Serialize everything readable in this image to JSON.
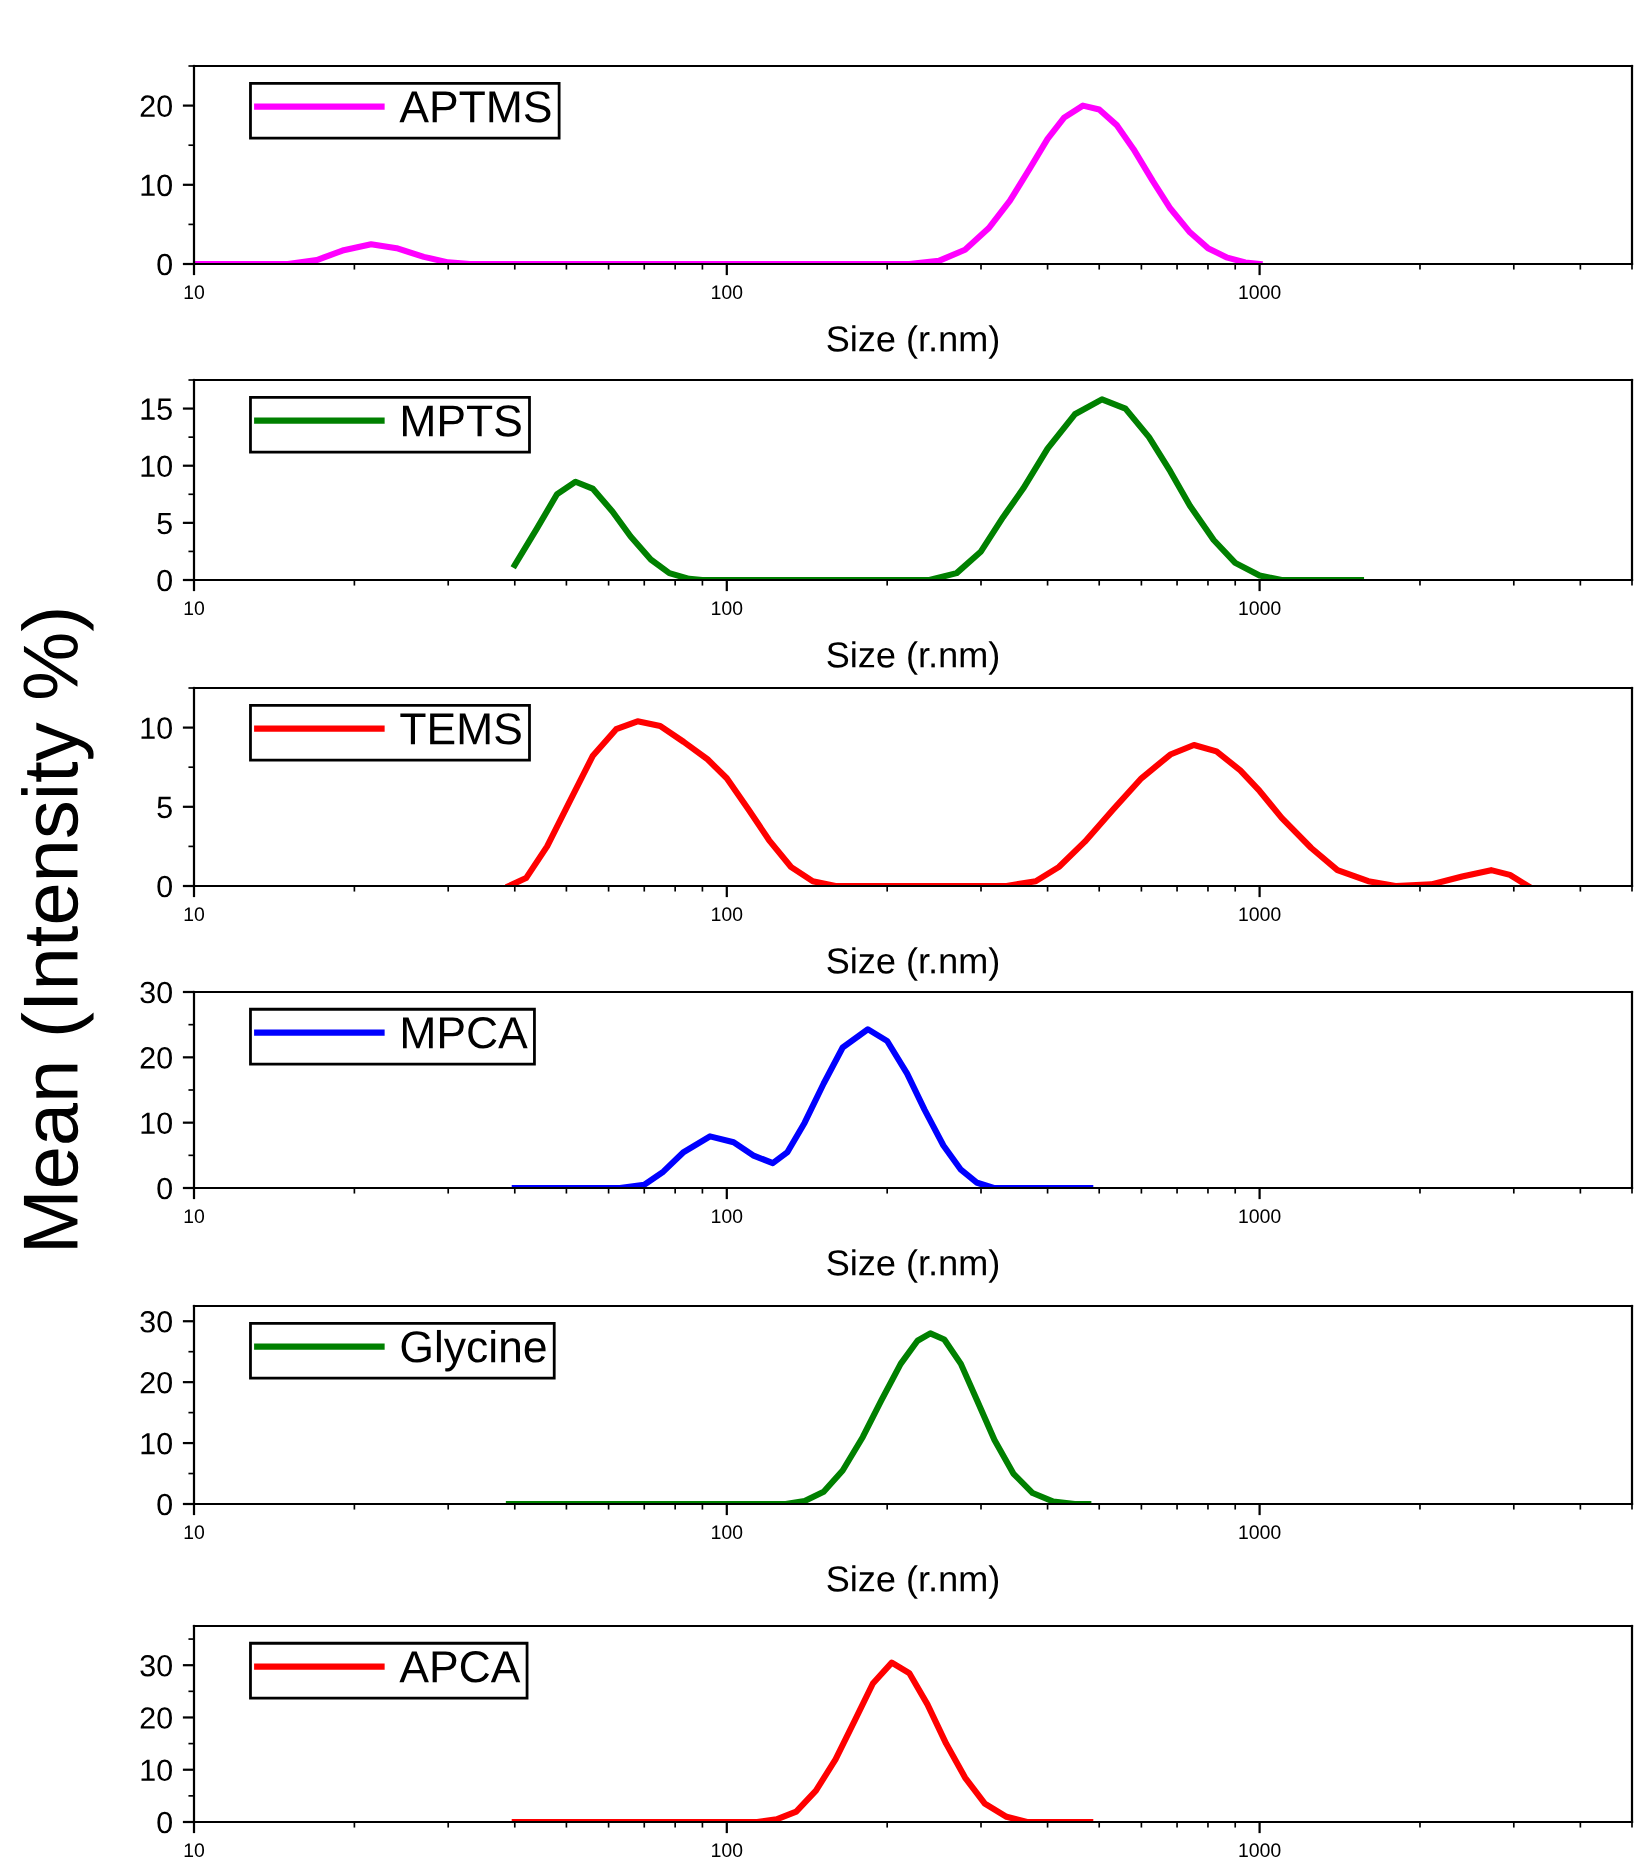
{
  "chart_data": [
    {
      "type": "line",
      "ylabel": "Mean (Intensity %)",
      "xlabel": "Size (r.nm)",
      "log": "x",
      "legend": "top left",
      "xlim": [
        10,
        5000
      ],
      "xticks": [
        10,
        100,
        1000
      ],
      "ylim": [
        0,
        25
      ],
      "yticks": [
        0,
        10,
        20
      ],
      "series": [
        {
          "name": "APTMS",
          "color": "#ff00ff",
          "x": [
            10,
            15,
            17,
            19,
            21.5,
            24,
            27,
            30,
            33,
            100,
            220,
            250,
            280,
            310,
            340,
            370,
            400,
            430,
            466,
            500,
            540,
            580,
            630,
            680,
            740,
            800,
            870,
            940,
            1000
          ],
          "values": [
            0,
            0,
            0.5,
            1.7,
            2.5,
            2.0,
            0.9,
            0.2,
            0,
            0,
            0,
            0.4,
            1.8,
            4.5,
            8,
            12,
            15.8,
            18.5,
            20,
            19.5,
            17.5,
            14.5,
            10.5,
            7,
            4,
            2,
            0.8,
            0.2,
            0
          ]
        }
      ]
    },
    {
      "type": "line",
      "xlabel": "Size (r.nm)",
      "log": "x",
      "legend": "top left",
      "xlim": [
        10,
        5000
      ],
      "xticks": [
        10,
        100,
        1000
      ],
      "ylim": [
        0,
        17.5
      ],
      "yticks": [
        0,
        5,
        10,
        15
      ],
      "series": [
        {
          "name": "MPTS",
          "color": "#008000",
          "x": [
            40,
            44,
            48,
            52,
            56,
            61,
            66,
            72,
            78,
            85,
            90,
            240,
            270,
            300,
            330,
            360,
            400,
            450,
            506,
            560,
            620,
            680,
            740,
            820,
            900,
            1000,
            1100,
            1550
          ],
          "values": [
            1.3,
            4.5,
            7.5,
            8.6,
            8.0,
            6,
            3.8,
            1.8,
            0.6,
            0.1,
            0,
            0,
            0.6,
            2.5,
            5.5,
            8,
            11.5,
            14.5,
            15.8,
            15,
            12.5,
            9.5,
            6.5,
            3.5,
            1.5,
            0.4,
            0,
            0
          ]
        }
      ]
    },
    {
      "type": "line",
      "xlabel": "Size (r.nm)",
      "log": "x",
      "legend": "top left",
      "xlim": [
        10,
        5000
      ],
      "xticks": [
        10,
        100,
        1000
      ],
      "ylim": [
        0,
        12.5
      ],
      "yticks": [
        0,
        5,
        10
      ],
      "series": [
        {
          "name": "TEMS",
          "color": "#ff0000",
          "x": [
            39,
            42,
            46,
            51,
            56,
            62,
            68,
            75,
            83,
            92,
            100,
            110,
            120,
            132,
            145,
            160,
            335,
            380,
            420,
            470,
            530,
            600,
            680,
            753,
            830,
            920,
            1000,
            1100,
            1250,
            1400,
            1600,
            1800,
            2100,
            2400,
            2720,
            2950,
            3190
          ],
          "values": [
            0,
            0.5,
            2.5,
            5.5,
            8.2,
            9.9,
            10.4,
            10.1,
            9.1,
            8.0,
            6.8,
            4.8,
            2.9,
            1.2,
            0.3,
            0,
            0,
            0.3,
            1.2,
            2.8,
            4.8,
            6.8,
            8.3,
            8.9,
            8.5,
            7.3,
            6.0,
            4.3,
            2.4,
            1.0,
            0.3,
            0,
            0.1,
            0.6,
            1.0,
            0.7,
            0
          ]
        }
      ]
    },
    {
      "type": "line",
      "xlabel": "Size (r.nm)",
      "log": "x",
      "legend": "top left",
      "xlim": [
        10,
        5000
      ],
      "xticks": [
        10,
        100,
        1000
      ],
      "ylim": [
        0,
        30
      ],
      "yticks": [
        0,
        10,
        20,
        30
      ],
      "series": [
        {
          "name": "MPCA",
          "color": "#0000ff",
          "x": [
            40,
            63,
            70,
            76,
            83,
            93,
            103,
            112,
            122,
            130,
            140,
            152,
            165,
            184,
            200,
            218,
            235,
            255,
            275,
            295,
            317,
            481
          ],
          "values": [
            0,
            0,
            0.5,
            2.5,
            5.5,
            7.9,
            7.0,
            5.0,
            3.8,
            5.5,
            10,
            16,
            21.5,
            24.3,
            22.5,
            17.5,
            12,
            6.5,
            2.8,
            0.8,
            0,
            0
          ]
        }
      ]
    },
    {
      "type": "line",
      "xlabel": "Size (r.nm)",
      "log": "x",
      "legend": "top left",
      "xlim": [
        10,
        5000
      ],
      "xticks": [
        10,
        100,
        1000
      ],
      "ylim": [
        0,
        32.5
      ],
      "yticks": [
        0,
        10,
        20,
        30
      ],
      "series": [
        {
          "name": "Glycine",
          "color": "#008000",
          "x": [
            39,
            129,
            140,
            152,
            165,
            180,
            195,
            212,
            228,
            241,
            256,
            275,
            295,
            318,
            345,
            375,
            410,
            450,
            477
          ],
          "values": [
            0,
            0,
            0.5,
            2,
            5.5,
            11,
            17,
            23,
            26.8,
            28,
            27,
            23,
            17,
            10.5,
            5,
            1.8,
            0.4,
            0,
            0
          ]
        }
      ]
    },
    {
      "type": "line",
      "log": "x",
      "legend": "top left",
      "xlim": [
        10,
        5000
      ],
      "xticks": [
        10,
        100,
        1000
      ],
      "ylim": [
        0,
        37.5
      ],
      "yticks": [
        0,
        10,
        20,
        30
      ],
      "series": [
        {
          "name": "APCA",
          "color": "#ff0000",
          "x": [
            40,
            114,
            124,
            135,
            147,
            160,
            174,
            188,
            204,
            220,
            238,
            258,
            280,
            305,
            335,
            366,
            481
          ],
          "values": [
            0,
            0,
            0.5,
            2,
            6,
            12,
            19.5,
            26.5,
            30.5,
            28.5,
            22.5,
            15,
            8.5,
            3.5,
            1,
            0,
            0
          ]
        }
      ]
    }
  ]
}
